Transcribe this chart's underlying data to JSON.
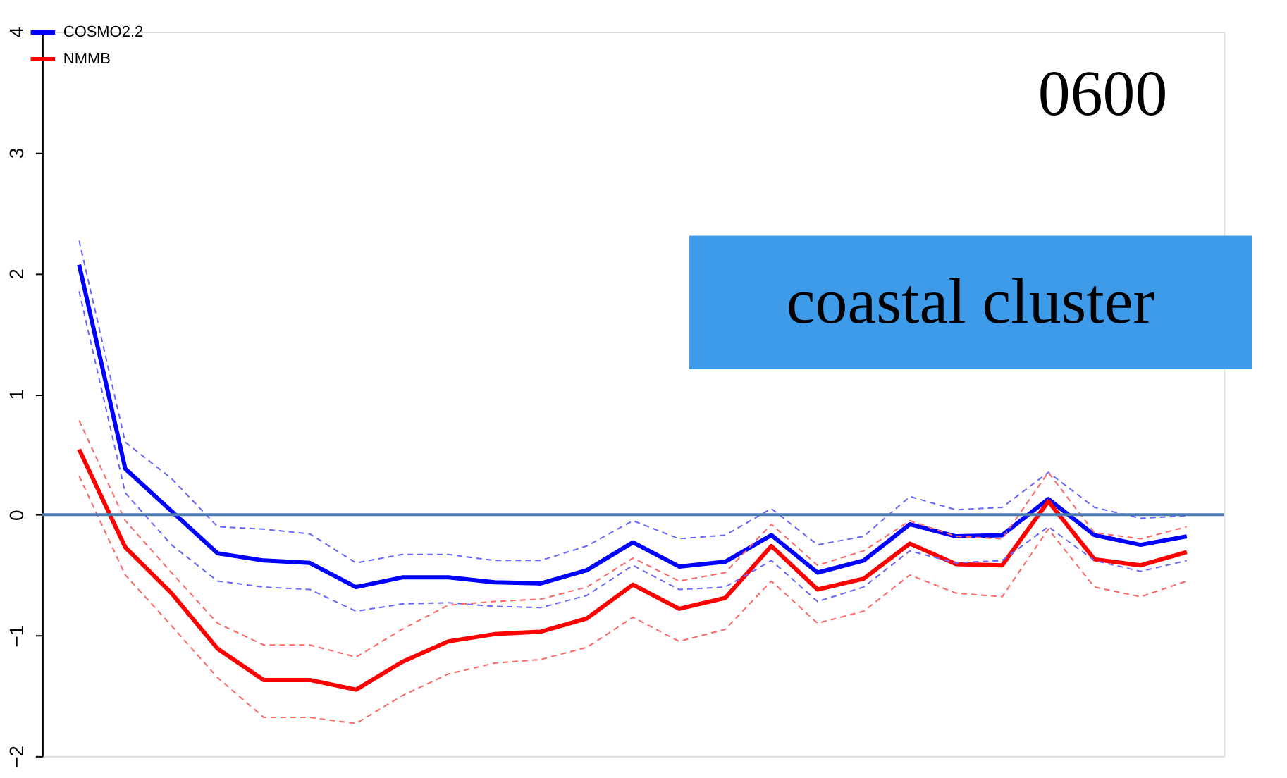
{
  "chart_data": {
    "type": "line",
    "categories": [
      null,
      null,
      null,
      null,
      null,
      null,
      null,
      null,
      null,
      null,
      null,
      null,
      null,
      null,
      null,
      null,
      null,
      null,
      null,
      null,
      null,
      null,
      null,
      null,
      null
    ],
    "series": [
      {
        "name": "COSMO2.2",
        "color": "#0000ff",
        "values": [
          2.07,
          0.38,
          0.03,
          -0.32,
          -0.38,
          -0.4,
          -0.6,
          -0.52,
          -0.52,
          -0.56,
          -0.57,
          -0.46,
          -0.23,
          -0.43,
          -0.39,
          -0.17,
          -0.48,
          -0.38,
          -0.08,
          -0.18,
          -0.17,
          0.13,
          -0.17,
          -0.25,
          -0.18
        ]
      },
      {
        "name": "NMMB",
        "color": "#ff0000",
        "values": [
          0.54,
          -0.27,
          -0.65,
          -1.11,
          -1.37,
          -1.37,
          -1.45,
          -1.22,
          -1.05,
          -0.99,
          -0.97,
          -0.86,
          -0.58,
          -0.78,
          -0.69,
          -0.26,
          -0.62,
          -0.53,
          -0.24,
          -0.41,
          -0.42,
          0.11,
          -0.37,
          -0.42,
          -0.31
        ]
      },
      {
        "color": "#6666ff",
        "line_style": "dashed",
        "values": [
          2.27,
          0.6,
          0.3,
          -0.1,
          -0.12,
          -0.16,
          -0.4,
          -0.33,
          -0.33,
          -0.38,
          -0.38,
          -0.26,
          -0.05,
          -0.2,
          -0.17,
          0.05,
          -0.25,
          -0.18,
          0.15,
          0.04,
          0.06,
          0.35,
          0.06,
          -0.03,
          -0.01
        ]
      },
      {
        "color": "#6666ff",
        "line_style": "dashed",
        "values": [
          1.85,
          0.18,
          -0.25,
          -0.55,
          -0.6,
          -0.62,
          -0.8,
          -0.74,
          -0.73,
          -0.76,
          -0.77,
          -0.67,
          -0.42,
          -0.62,
          -0.6,
          -0.38,
          -0.72,
          -0.6,
          -0.3,
          -0.4,
          -0.38,
          -0.1,
          -0.38,
          -0.47,
          -0.38
        ]
      },
      {
        "color": "#ff6666",
        "line_style": "dashed",
        "values": [
          0.78,
          -0.05,
          -0.48,
          -0.9,
          -1.08,
          -1.08,
          -1.18,
          -0.95,
          -0.75,
          -0.72,
          -0.7,
          -0.6,
          -0.36,
          -0.55,
          -0.48,
          -0.08,
          -0.42,
          -0.3,
          -0.05,
          -0.18,
          -0.2,
          0.35,
          -0.15,
          -0.2,
          -0.1
        ]
      },
      {
        "color": "#ff6666",
        "line_style": "dashed",
        "values": [
          0.32,
          -0.5,
          -0.92,
          -1.35,
          -1.68,
          -1.68,
          -1.73,
          -1.5,
          -1.32,
          -1.23,
          -1.2,
          -1.1,
          -0.85,
          -1.05,
          -0.95,
          -0.55,
          -0.9,
          -0.8,
          -0.5,
          -0.65,
          -0.68,
          -0.12,
          -0.6,
          -0.68,
          -0.55
        ]
      }
    ],
    "ylim": [
      -2,
      4
    ],
    "yticks": [
      -2,
      -1,
      0,
      1,
      2,
      3,
      4
    ],
    "ref_lines": [
      {
        "axis": "y",
        "value": 0,
        "color": "#4a7ab0"
      }
    ],
    "annotations": [
      "0600",
      "coastal cluster"
    ],
    "legend": "top left",
    "grid": false,
    "marker": "none",
    "line_style": "solid",
    "tick_labels": "y"
  }
}
